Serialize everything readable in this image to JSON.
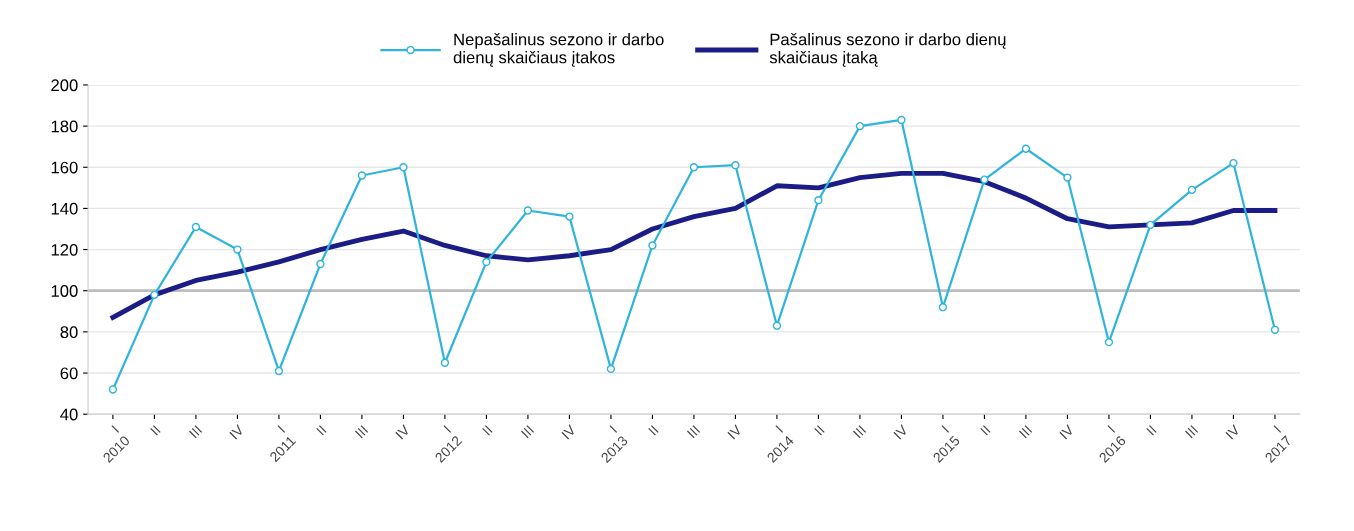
{
  "chart_data": {
    "type": "line",
    "categories": [
      "I\n2010",
      "II",
      "III",
      "IV",
      "I\n2011",
      "II",
      "III",
      "IV",
      "I\n2012",
      "II",
      "III",
      "IV",
      "I\n2013",
      "II",
      "III",
      "IV",
      "I\n2014",
      "II",
      "III",
      "IV",
      "I\n2015",
      "II",
      "III",
      "IV",
      "I\n2016",
      "II",
      "III",
      "IV",
      "I\n2017"
    ],
    "series": [
      {
        "name": "Nepašalinus sezono ir darbo\ndienų skaičiaus įtakos",
        "color": "#2fb4dc",
        "marker": "circle",
        "values": [
          52,
          98,
          131,
          120,
          61,
          113,
          156,
          160,
          65,
          114,
          139,
          136,
          62,
          122,
          160,
          161,
          83,
          144,
          180,
          183,
          92,
          154,
          169,
          155,
          75,
          132,
          149,
          162,
          81
        ]
      },
      {
        "name": "Pašalinus sezono ir darbo dienų\nskaičiaus įtaką",
        "color": "#1c1c86",
        "values": [
          87,
          98,
          105,
          109,
          114,
          120,
          125,
          129,
          122,
          117,
          115,
          117,
          120,
          130,
          136,
          140,
          151,
          150,
          155,
          157,
          157,
          153,
          145,
          135,
          131,
          132,
          133,
          139,
          139
        ]
      }
    ],
    "ylim": [
      40,
      200
    ],
    "yticks": [
      40,
      60,
      80,
      100,
      120,
      140,
      160,
      180,
      200
    ],
    "ref_lines": [
      {
        "axis": "y",
        "value": 100,
        "color": "#bdbdbd"
      }
    ],
    "grid": "y",
    "legend": "top"
  }
}
